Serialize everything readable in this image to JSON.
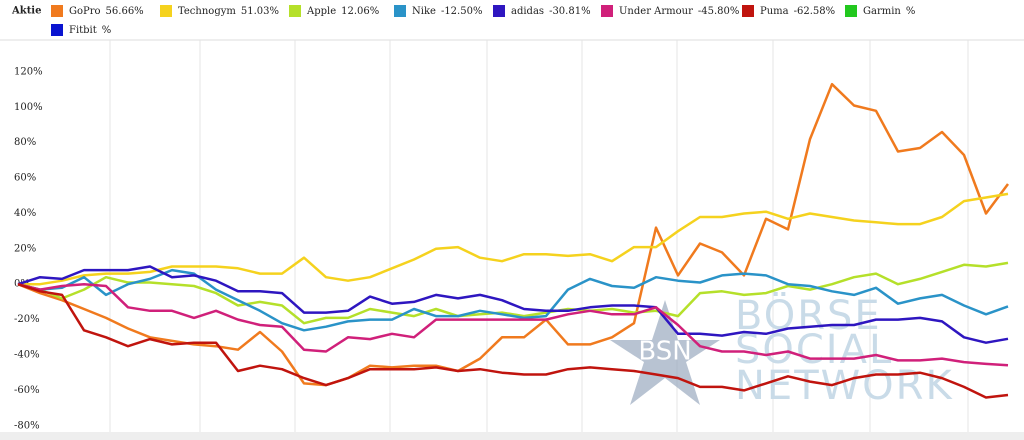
{
  "chart_data": {
    "type": "line",
    "legend_title": "Aktie",
    "ylim": [
      -88,
      138
    ],
    "yticks": [
      {
        "value": 120,
        "label": "120%"
      },
      {
        "value": 100,
        "label": "100%"
      },
      {
        "value": 80,
        "label": "80%"
      },
      {
        "value": 60,
        "label": "60%"
      },
      {
        "value": 40,
        "label": "40%"
      },
      {
        "value": 20,
        "label": "20%"
      },
      {
        "value": 0,
        "label": "0%"
      },
      {
        "value": -20,
        "label": "-20%"
      },
      {
        "value": -40,
        "label": "-40%"
      },
      {
        "value": -60,
        "label": "-60%"
      },
      {
        "value": -80,
        "label": "-80%"
      }
    ],
    "watermark": {
      "badge": "BSN",
      "lines": [
        "BÖRSE",
        "SOCIAL",
        "NETWORK"
      ]
    },
    "series": [
      {
        "name": "GoPro",
        "legend_label": "56.66%",
        "color": "#f07a1e",
        "values": [
          0,
          -5,
          -9,
          -14,
          -19,
          -25,
          -30,
          -32,
          -34,
          -35,
          -37,
          -27,
          -38,
          -56,
          -57,
          -53,
          -46,
          -47,
          -46,
          -46,
          -49,
          -42,
          -30,
          -30,
          -20,
          -34,
          -34,
          -30,
          -22,
          32,
          5,
          23,
          18,
          5,
          37,
          31,
          82,
          113,
          101,
          98,
          75,
          77,
          86,
          73,
          40,
          56.66
        ]
      },
      {
        "name": "Technogym",
        "legend_label": "51.03%",
        "color": "#f5d21e",
        "values": [
          0,
          0,
          2,
          5,
          6,
          6,
          7,
          10,
          10,
          10,
          9,
          6,
          6,
          15,
          4,
          2,
          4,
          9,
          14,
          20,
          21,
          15,
          13,
          17,
          17,
          16,
          17,
          13,
          21,
          21,
          30,
          38,
          38,
          40,
          41,
          37,
          40,
          38,
          36,
          35,
          34,
          34,
          38,
          47,
          49,
          51.03
        ]
      },
      {
        "name": "Apple",
        "legend_label": "12.06%",
        "color": "#b5e02a",
        "values": [
          0,
          -3,
          -8,
          -3,
          4,
          1,
          1,
          0,
          -1,
          -5,
          -12,
          -10,
          -12,
          -22,
          -19,
          -19,
          -14,
          -16,
          -18,
          -14,
          -18,
          -17,
          -16,
          -18,
          -16,
          -14,
          -15,
          -14,
          -16,
          -15,
          -18,
          -5,
          -4,
          -6,
          -5,
          -1,
          -3,
          0,
          4,
          6,
          0,
          3,
          7,
          11,
          10,
          12.06
        ]
      },
      {
        "name": "Nike",
        "legend_label": "-12.50%",
        "color": "#2a93c8",
        "values": [
          0,
          -3,
          -2,
          4,
          -6,
          0,
          3,
          8,
          6,
          -3,
          -9,
          -15,
          -22,
          -26,
          -24,
          -21,
          -20,
          -20,
          -14,
          -18,
          -18,
          -15,
          -17,
          -19,
          -18,
          -3,
          3,
          -1,
          -2,
          4,
          2,
          1,
          5,
          6,
          5,
          0,
          -1,
          -4,
          -6,
          -2,
          -11,
          -8,
          -6,
          -12,
          -17,
          -12.5
        ]
      },
      {
        "name": "adidas",
        "legend_label": "-30.81%",
        "color": "#2e16c0",
        "values": [
          0,
          4,
          3,
          8,
          8,
          8,
          10,
          4,
          5,
          2,
          -4,
          -4,
          -5,
          -16,
          -16,
          -15,
          -7,
          -11,
          -10,
          -6,
          -8,
          -6,
          -9,
          -14,
          -15,
          -15,
          -13,
          -12,
          -12,
          -13,
          -28,
          -28,
          -29,
          -27,
          -28,
          -25,
          -24,
          -23,
          -23,
          -20,
          -20,
          -19,
          -21,
          -30,
          -33,
          -30.81
        ]
      },
      {
        "name": "Under Armour",
        "legend_label": "-45.80%",
        "color": "#d0207a",
        "values": [
          0,
          -3,
          -1,
          0,
          -1,
          -13,
          -15,
          -15,
          -19,
          -15,
          -20,
          -23,
          -24,
          -37,
          -38,
          -30,
          -31,
          -28,
          -30,
          -20,
          -20,
          -20,
          -20,
          -20,
          -20,
          -17,
          -15,
          -17,
          -17,
          -13,
          -23,
          -35,
          -38,
          -38,
          -40,
          -38,
          -42,
          -42,
          -42,
          -40,
          -43,
          -43,
          -42,
          -44,
          -45,
          -45.8
        ]
      },
      {
        "name": "Puma",
        "legend_label": "-62.58%",
        "color": "#c0140e",
        "values": [
          0,
          -4,
          -6,
          -26,
          -30,
          -35,
          -31,
          -34,
          -33,
          -33,
          -49,
          -46,
          -48,
          -53,
          -57,
          -53,
          -48,
          -48,
          -48,
          -47,
          -49,
          -48,
          -50,
          -51,
          -51,
          -48,
          -47,
          -48,
          -49,
          -51,
          -53,
          -58,
          -58,
          -60,
          -56,
          -52,
          -55,
          -57,
          -53,
          -51,
          -51,
          -50,
          -53,
          -58,
          -64,
          -62.58
        ]
      },
      {
        "name": "Garmin",
        "legend_label": "%",
        "color": "#22c81e"
      },
      {
        "name": "Fitbit",
        "legend_label": "%",
        "color": "#0a14d0"
      }
    ]
  }
}
